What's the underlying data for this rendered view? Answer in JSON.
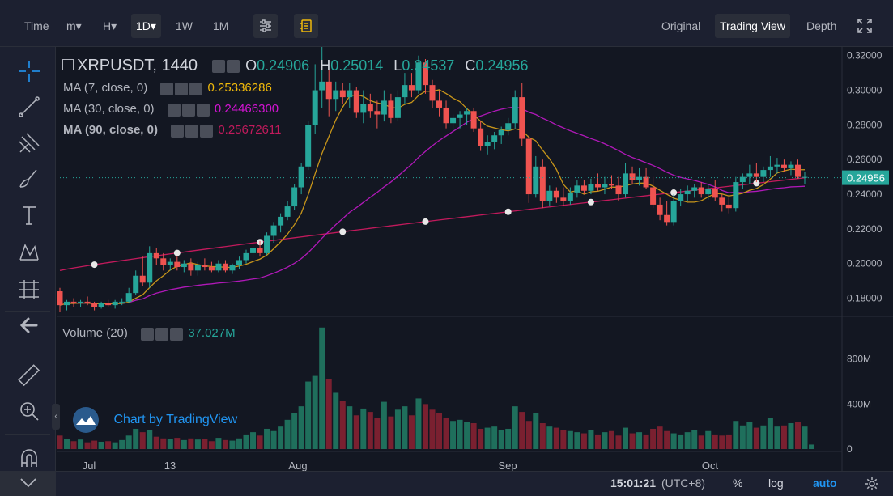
{
  "toolbar": {
    "intervals": [
      {
        "label": "Time",
        "active": false
      },
      {
        "label": "m▾",
        "active": false
      },
      {
        "label": "H▾",
        "active": false
      },
      {
        "label": "1D▾",
        "active": true
      },
      {
        "label": "1W",
        "active": false
      },
      {
        "label": "1M",
        "active": false
      }
    ],
    "views": [
      {
        "label": "Original",
        "active": false
      },
      {
        "label": "Trading View",
        "active": true
      },
      {
        "label": "Depth",
        "active": false
      }
    ]
  },
  "legend": {
    "symbol": "XRPUSDT, 1440",
    "ohlc": [
      {
        "k": "O",
        "v": "0.24906"
      },
      {
        "k": "H",
        "v": "0.25014"
      },
      {
        "k": "L",
        "v": "0.24537"
      },
      {
        "k": "C",
        "v": "0.24956"
      }
    ],
    "ma": [
      {
        "label": "MA (7, close, 0)",
        "value": "0.25336286",
        "color": "#f0b90b"
      },
      {
        "label": "MA (30, close, 0)",
        "value": "0.24466300",
        "color": "#d414d4"
      },
      {
        "label": "MA (90, close, 0)",
        "value": "0.25672611",
        "color": "#c21a5c"
      }
    ],
    "volume_label": "Volume (20)",
    "volume_value": "37.027M"
  },
  "watermark": "Chart by TradingView",
  "colors": {
    "up": "#26a69a",
    "down": "#ef5350",
    "up_vol": "#1f6f5c",
    "down_vol": "#7a2030"
  },
  "chart_data": {
    "type": "candlestick",
    "price_axis": {
      "min": 0.17,
      "max": 0.325,
      "ticks": [
        "0.32000",
        "0.30000",
        "0.28000",
        "0.26000",
        "0.24000",
        "0.22000",
        "0.20000",
        "0.18000"
      ],
      "last": "0.24956"
    },
    "volume_axis": {
      "max_label": "800M",
      "ticks": [
        "800M",
        "400M",
        "0"
      ]
    },
    "time_axis": {
      "ticks": [
        "Jul",
        "13",
        "Aug",
        "Sep",
        "Oct"
      ]
    },
    "candles": [
      [
        0.184,
        0.186,
        0.172,
        0.176
      ],
      [
        0.176,
        0.179,
        0.173,
        0.178
      ],
      [
        0.178,
        0.18,
        0.175,
        0.177
      ],
      [
        0.177,
        0.179,
        0.175,
        0.178
      ],
      [
        0.178,
        0.181,
        0.176,
        0.177
      ],
      [
        0.177,
        0.178,
        0.173,
        0.175
      ],
      [
        0.175,
        0.178,
        0.174,
        0.177
      ],
      [
        0.177,
        0.179,
        0.175,
        0.176
      ],
      [
        0.176,
        0.179,
        0.174,
        0.178
      ],
      [
        0.178,
        0.18,
        0.176,
        0.178
      ],
      [
        0.178,
        0.186,
        0.177,
        0.183
      ],
      [
        0.183,
        0.196,
        0.182,
        0.193
      ],
      [
        0.193,
        0.204,
        0.187,
        0.189
      ],
      [
        0.189,
        0.21,
        0.186,
        0.206
      ],
      [
        0.206,
        0.209,
        0.199,
        0.203
      ],
      [
        0.203,
        0.206,
        0.196,
        0.199
      ],
      [
        0.199,
        0.203,
        0.196,
        0.201
      ],
      [
        0.201,
        0.204,
        0.196,
        0.198
      ],
      [
        0.198,
        0.202,
        0.195,
        0.2
      ],
      [
        0.2,
        0.203,
        0.193,
        0.196
      ],
      [
        0.196,
        0.201,
        0.193,
        0.199
      ],
      [
        0.199,
        0.203,
        0.196,
        0.198
      ],
      [
        0.198,
        0.201,
        0.195,
        0.196
      ],
      [
        0.196,
        0.202,
        0.195,
        0.2
      ],
      [
        0.2,
        0.202,
        0.195,
        0.196
      ],
      [
        0.196,
        0.2,
        0.194,
        0.199
      ],
      [
        0.199,
        0.204,
        0.197,
        0.202
      ],
      [
        0.202,
        0.208,
        0.2,
        0.206
      ],
      [
        0.206,
        0.211,
        0.203,
        0.209
      ],
      [
        0.209,
        0.213,
        0.204,
        0.206
      ],
      [
        0.206,
        0.218,
        0.205,
        0.216
      ],
      [
        0.216,
        0.224,
        0.212,
        0.222
      ],
      [
        0.222,
        0.229,
        0.218,
        0.227
      ],
      [
        0.227,
        0.236,
        0.225,
        0.233
      ],
      [
        0.233,
        0.246,
        0.231,
        0.244
      ],
      [
        0.244,
        0.258,
        0.24,
        0.256
      ],
      [
        0.256,
        0.282,
        0.254,
        0.28
      ],
      [
        0.28,
        0.315,
        0.275,
        0.3
      ],
      [
        0.3,
        0.325,
        0.29,
        0.305
      ],
      [
        0.305,
        0.312,
        0.285,
        0.295
      ],
      [
        0.295,
        0.305,
        0.288,
        0.3
      ],
      [
        0.3,
        0.304,
        0.292,
        0.296
      ],
      [
        0.296,
        0.304,
        0.29,
        0.3
      ],
      [
        0.3,
        0.302,
        0.284,
        0.287
      ],
      [
        0.287,
        0.3,
        0.281,
        0.292
      ],
      [
        0.292,
        0.298,
        0.284,
        0.288
      ],
      [
        0.288,
        0.294,
        0.278,
        0.286
      ],
      [
        0.286,
        0.3,
        0.282,
        0.294
      ],
      [
        0.294,
        0.298,
        0.281,
        0.284
      ],
      [
        0.284,
        0.3,
        0.282,
        0.296
      ],
      [
        0.296,
        0.31,
        0.292,
        0.303
      ],
      [
        0.303,
        0.31,
        0.296,
        0.3
      ],
      [
        0.3,
        0.32,
        0.298,
        0.316
      ],
      [
        0.316,
        0.318,
        0.298,
        0.303
      ],
      [
        0.303,
        0.306,
        0.29,
        0.294
      ],
      [
        0.294,
        0.3,
        0.285,
        0.29
      ],
      [
        0.29,
        0.294,
        0.278,
        0.281
      ],
      [
        0.281,
        0.286,
        0.276,
        0.284
      ],
      [
        0.284,
        0.288,
        0.278,
        0.286
      ],
      [
        0.286,
        0.29,
        0.28,
        0.288
      ],
      [
        0.288,
        0.29,
        0.276,
        0.278
      ],
      [
        0.278,
        0.282,
        0.265,
        0.268
      ],
      [
        0.268,
        0.274,
        0.263,
        0.27
      ],
      [
        0.27,
        0.276,
        0.266,
        0.274
      ],
      [
        0.274,
        0.279,
        0.269,
        0.277
      ],
      [
        0.277,
        0.284,
        0.274,
        0.281
      ],
      [
        0.281,
        0.3,
        0.278,
        0.296
      ],
      [
        0.296,
        0.304,
        0.268,
        0.272
      ],
      [
        0.272,
        0.274,
        0.235,
        0.24
      ],
      [
        0.24,
        0.262,
        0.238,
        0.256
      ],
      [
        0.256,
        0.26,
        0.232,
        0.236
      ],
      [
        0.236,
        0.245,
        0.233,
        0.242
      ],
      [
        0.242,
        0.244,
        0.235,
        0.238
      ],
      [
        0.238,
        0.244,
        0.233,
        0.236
      ],
      [
        0.236,
        0.244,
        0.234,
        0.241
      ],
      [
        0.241,
        0.248,
        0.238,
        0.245
      ],
      [
        0.245,
        0.248,
        0.24,
        0.242
      ],
      [
        0.242,
        0.249,
        0.24,
        0.246
      ],
      [
        0.246,
        0.252,
        0.242,
        0.244
      ],
      [
        0.244,
        0.25,
        0.24,
        0.246
      ],
      [
        0.246,
        0.251,
        0.243,
        0.245
      ],
      [
        0.245,
        0.25,
        0.236,
        0.24
      ],
      [
        0.24,
        0.258,
        0.238,
        0.252
      ],
      [
        0.252,
        0.256,
        0.246,
        0.248
      ],
      [
        0.248,
        0.255,
        0.245,
        0.25
      ],
      [
        0.25,
        0.255,
        0.243,
        0.244
      ],
      [
        0.244,
        0.25,
        0.232,
        0.234
      ],
      [
        0.234,
        0.238,
        0.225,
        0.228
      ],
      [
        0.228,
        0.236,
        0.222,
        0.224
      ],
      [
        0.224,
        0.24,
        0.222,
        0.236
      ],
      [
        0.236,
        0.243,
        0.233,
        0.24
      ],
      [
        0.24,
        0.245,
        0.236,
        0.242
      ],
      [
        0.242,
        0.246,
        0.238,
        0.244
      ],
      [
        0.244,
        0.247,
        0.238,
        0.24
      ],
      [
        0.24,
        0.246,
        0.237,
        0.243
      ],
      [
        0.243,
        0.248,
        0.236,
        0.238
      ],
      [
        0.238,
        0.24,
        0.23,
        0.234
      ],
      [
        0.234,
        0.238,
        0.229,
        0.232
      ],
      [
        0.232,
        0.25,
        0.23,
        0.247
      ],
      [
        0.247,
        0.252,
        0.243,
        0.25
      ],
      [
        0.25,
        0.257,
        0.246,
        0.252
      ],
      [
        0.252,
        0.258,
        0.247,
        0.25
      ],
      [
        0.25,
        0.256,
        0.247,
        0.254
      ],
      [
        0.254,
        0.262,
        0.25,
        0.256
      ],
      [
        0.256,
        0.261,
        0.252,
        0.257
      ],
      [
        0.257,
        0.26,
        0.253,
        0.255
      ],
      [
        0.255,
        0.259,
        0.251,
        0.257
      ],
      [
        0.257,
        0.26,
        0.249,
        0.25
      ],
      [
        0.25,
        0.253,
        0.246,
        0.25
      ]
    ],
    "volumes_m": [
      120,
      90,
      70,
      85,
      60,
      75,
      65,
      70,
      60,
      80,
      120,
      180,
      150,
      170,
      110,
      95,
      90,
      100,
      80,
      95,
      85,
      90,
      70,
      100,
      80,
      75,
      95,
      130,
      150,
      120,
      180,
      160,
      200,
      260,
      320,
      380,
      600,
      650,
      1080,
      620,
      500,
      430,
      380,
      300,
      360,
      330,
      280,
      420,
      290,
      350,
      380,
      300,
      450,
      400,
      350,
      320,
      280,
      250,
      260,
      240,
      230,
      180,
      190,
      200,
      170,
      180,
      380,
      330,
      250,
      320,
      230,
      200,
      190,
      170,
      160,
      150,
      140,
      170,
      130,
      150,
      160,
      120,
      190,
      140,
      150,
      130,
      180,
      200,
      160,
      140,
      130,
      150,
      170,
      120,
      160,
      130,
      120,
      130,
      250,
      210,
      240,
      190,
      210,
      280,
      200,
      210,
      230,
      240,
      200,
      40
    ]
  }
}
